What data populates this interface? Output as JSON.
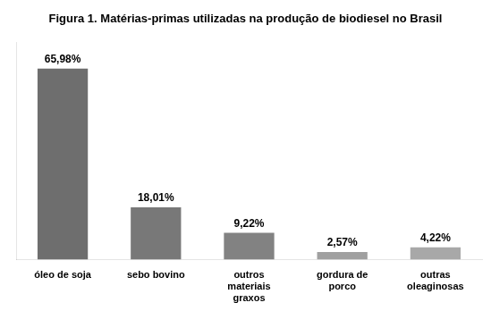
{
  "chart_data": {
    "type": "bar",
    "title": "Figura 1. Matérias-primas utilizadas na produção de biodiesel no Brasil",
    "categories": [
      "óleo de soja",
      "sebo bovino",
      "outros\nmateriais\ngraxos",
      "gordura de\nporco",
      "outras\noleaginosas"
    ],
    "values": [
      65.98,
      18.01,
      9.22,
      2.57,
      4.22
    ],
    "value_labels": [
      "65,98%",
      "18,01%",
      "9,22%",
      "2,57%",
      "4,22%"
    ],
    "colors": [
      "#6e6e6e",
      "#787878",
      "#828282",
      "#a0a0a0",
      "#a8a8a8"
    ],
    "ylim": [
      0,
      75
    ],
    "grid": false,
    "data_labels": true,
    "tick_labels": "x"
  }
}
